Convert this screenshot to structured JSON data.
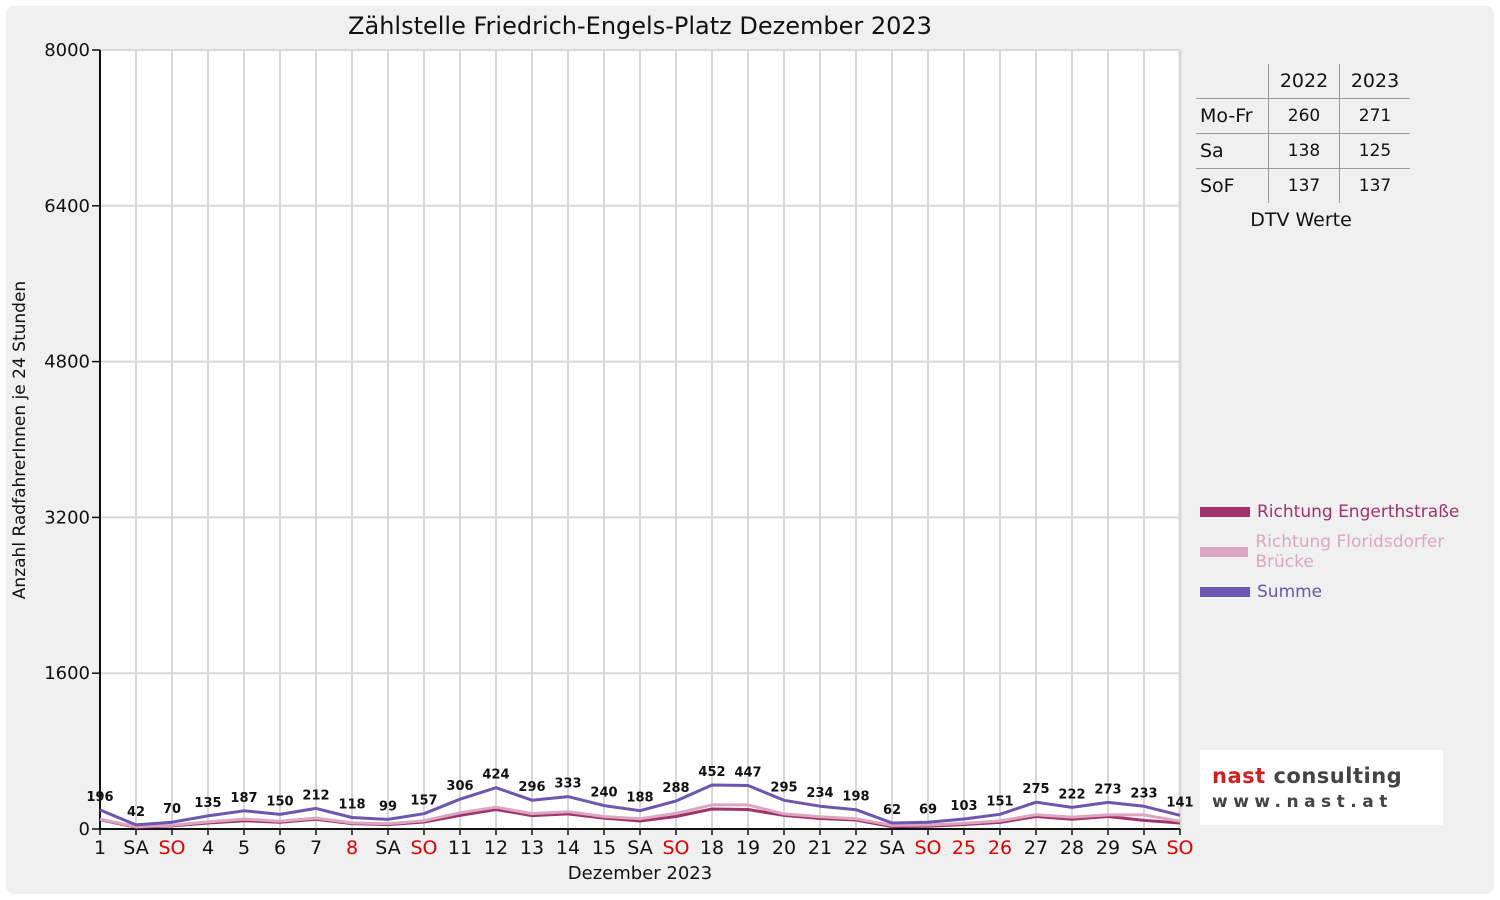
{
  "chart_data": {
    "type": "line",
    "title": "Zählstelle Friedrich-Engels-Platz Dezember 2023",
    "xlabel": "Dezember 2023",
    "ylabel": "Anzahl RadfahrerInnen je 24 Stunden",
    "ylim": [
      0,
      8000
    ],
    "yticks": [
      "0",
      "1600",
      "3200",
      "4800",
      "6400",
      "8000"
    ],
    "grid": true,
    "legend_position": "right",
    "categories": [
      "1",
      "SA",
      "SO",
      "4",
      "5",
      "6",
      "7",
      "8",
      "SA",
      "SO",
      "11",
      "12",
      "13",
      "14",
      "15",
      "SA",
      "SO",
      "18",
      "19",
      "20",
      "21",
      "22",
      "SA",
      "SO",
      "25",
      "26",
      "27",
      "28",
      "29",
      "SA",
      "SO"
    ],
    "red_categories": [
      2,
      7,
      9,
      16,
      23,
      24,
      25,
      30
    ],
    "series": [
      {
        "name": "Richtung Engerthstraße",
        "color": "#a0336b",
        "values": [
          95,
          18,
          32,
          62,
          85,
          70,
          100,
          55,
          45,
          72,
          140,
          200,
          138,
          155,
          112,
          82,
          128,
          205,
          200,
          140,
          108,
          92,
          25,
          28,
          46,
          68,
          128,
          100,
          128,
          88,
          62
        ]
      },
      {
        "name": "Richtung Floridsdorfer Brücke",
        "color": "#dca6c0",
        "values": [
          101,
          24,
          38,
          73,
          102,
          80,
          112,
          63,
          54,
          85,
          166,
          224,
          158,
          178,
          128,
          106,
          160,
          247,
          247,
          155,
          126,
          106,
          37,
          41,
          57,
          83,
          147,
          122,
          145,
          145,
          79
        ]
      },
      {
        "name": "Summe",
        "color": "#6b56b0",
        "values": [
          196,
          42,
          70,
          135,
          187,
          150,
          212,
          118,
          99,
          157,
          306,
          424,
          296,
          333,
          240,
          188,
          288,
          452,
          447,
          295,
          234,
          198,
          62,
          69,
          103,
          151,
          275,
          222,
          273,
          233,
          141
        ]
      }
    ],
    "data_labels": [
      "196",
      "42",
      "70",
      "135",
      "187",
      "150",
      "212",
      "118",
      "99",
      "157",
      "306",
      "424",
      "296",
      "333",
      "240",
      "188",
      "288",
      "452",
      "447",
      "295",
      "234",
      "198",
      "62",
      "69",
      "103",
      "151",
      "275",
      "222",
      "273",
      "233",
      "141"
    ]
  },
  "dtv": {
    "headers": [
      "2022",
      "2023"
    ],
    "rows": [
      {
        "label": "Mo-Fr",
        "v2022": "260",
        "v2023": "271"
      },
      {
        "label": "Sa",
        "v2022": "138",
        "v2023": "125"
      },
      {
        "label": "SoF",
        "v2022": "137",
        "v2023": "137"
      }
    ],
    "caption": "DTV Werte"
  },
  "logo": {
    "name_part1": "nast",
    "name_part2": " consulting",
    "url": "www.nast.at",
    "accent_color": "#d02020"
  }
}
